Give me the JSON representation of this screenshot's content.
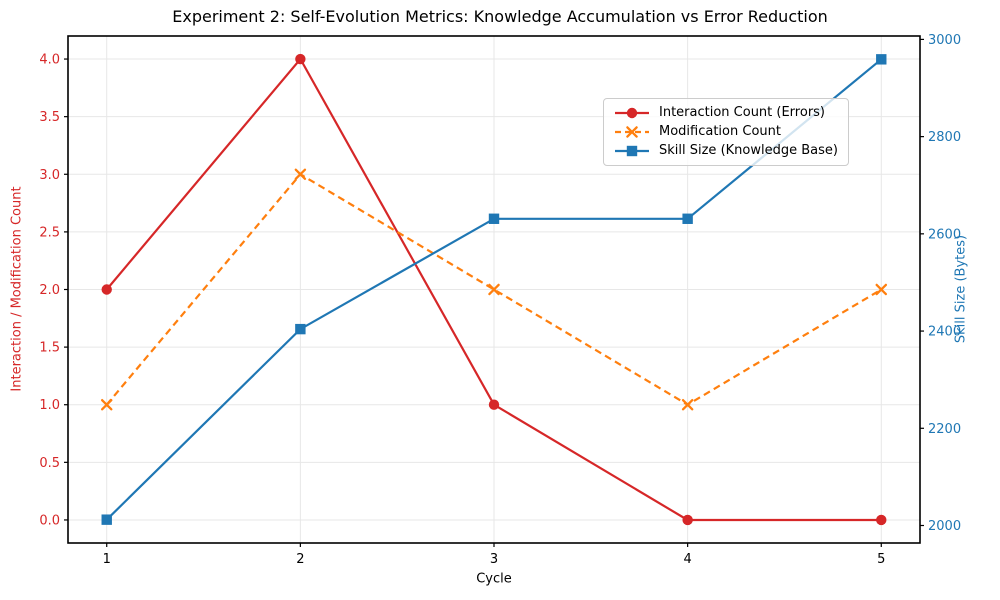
{
  "chart_data": {
    "type": "line",
    "title": "Experiment 2: Self-Evolution Metrics: Knowledge Accumulation vs Error Reduction",
    "xlabel": "Cycle",
    "ylabel_left": "Interaction / Modification Count",
    "ylabel_right": "Skill Size (Bytes)",
    "x": [
      1,
      2,
      3,
      4,
      5
    ],
    "series": [
      {
        "name": "Interaction Count (Errors)",
        "axis": "left",
        "color": "#d62728",
        "style": "solid",
        "marker": "circle",
        "values": [
          2,
          4,
          1,
          0,
          0
        ]
      },
      {
        "name": "Modification Count",
        "axis": "left",
        "color": "#ff7f0e",
        "style": "dashed",
        "marker": "x",
        "values": [
          1,
          3,
          2,
          1,
          2
        ]
      },
      {
        "name": "Skill Size (Knowledge Base)",
        "axis": "right",
        "color": "#1f77b4",
        "style": "solid",
        "marker": "square",
        "values": [
          2012,
          2404,
          2631,
          2631,
          2959
        ]
      }
    ],
    "x_ticks": [
      1,
      2,
      3,
      4,
      5
    ],
    "x_tick_labels": [
      "1",
      "2",
      "3",
      "4",
      "5"
    ],
    "left_tick_values": [
      0,
      0.5,
      1,
      1.5,
      2,
      2.5,
      3,
      3.5,
      4
    ],
    "left_tick_labels": [
      "0.0",
      "0.5",
      "1.0",
      "1.5",
      "2.0",
      "2.5",
      "3.0",
      "3.5",
      "4.0"
    ],
    "right_tick_values": [
      2000,
      2200,
      2400,
      2600,
      2800,
      3000
    ],
    "right_tick_labels": [
      "2000",
      "2200",
      "2400",
      "2600",
      "2800",
      "3000"
    ],
    "xlim": [
      0.8,
      5.2
    ],
    "ylim_left": [
      -0.2,
      4.2
    ],
    "ylim_right": [
      1964,
      3007
    ],
    "grid": true,
    "legend_location": "upper center-right, inside plot",
    "colors": {
      "left_axis": "#d62728",
      "right_axis": "#1f77b4",
      "grid": "#e7e7e7",
      "spine": "#000000",
      "tick": "#000000",
      "tick_label_bottom": "#000000",
      "background": "#ffffff"
    }
  }
}
